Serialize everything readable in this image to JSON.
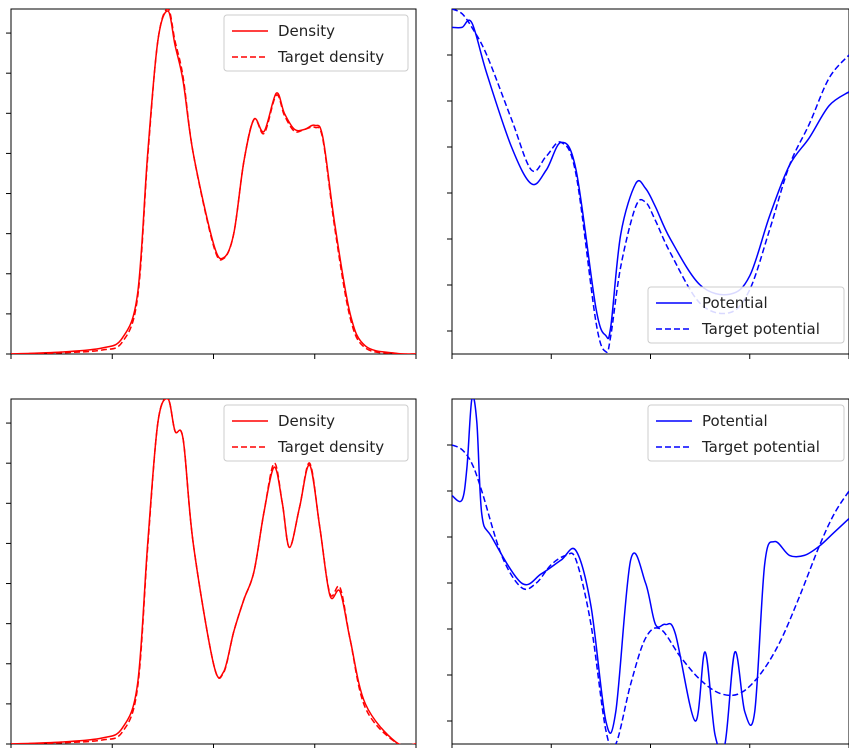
{
  "chart_data": [
    {
      "type": "line",
      "panel": "top-left",
      "xlim": [
        0,
        4
      ],
      "ylim": [
        0,
        8.6
      ],
      "xticks": [
        0,
        1,
        2,
        3,
        4
      ],
      "yticks": [
        0,
        1,
        2,
        3,
        4,
        5,
        6,
        7,
        8
      ],
      "tick_labels_visible": false,
      "legend_position": "top-right",
      "series": [
        {
          "name": "Density",
          "style": "solid",
          "color": "#ff0000",
          "x": [
            0,
            0.5,
            0.9,
            1.1,
            1.25,
            1.35,
            1.45,
            1.55,
            1.62,
            1.7,
            1.8,
            2.0,
            2.1,
            2.2,
            2.3,
            2.4,
            2.5,
            2.62,
            2.7,
            2.8,
            2.9,
            3.0,
            3.08,
            3.2,
            3.35,
            3.5,
            3.8,
            4.0
          ],
          "y": [
            0,
            0.05,
            0.15,
            0.4,
            1.5,
            5.0,
            7.8,
            8.55,
            7.7,
            6.8,
            5.0,
            2.75,
            2.4,
            3.0,
            4.8,
            5.85,
            5.55,
            6.5,
            6.0,
            5.6,
            5.6,
            5.7,
            5.4,
            3.2,
            1.0,
            0.2,
            0.02,
            0
          ]
        },
        {
          "name": "Target density",
          "style": "dashed",
          "color": "#ff0000",
          "x": [
            0,
            0.5,
            0.9,
            1.1,
            1.25,
            1.35,
            1.45,
            1.55,
            1.62,
            1.7,
            1.8,
            2.0,
            2.1,
            2.2,
            2.3,
            2.4,
            2.5,
            2.62,
            2.7,
            2.8,
            2.9,
            3.0,
            3.08,
            3.2,
            3.35,
            3.5,
            3.8,
            4.0
          ],
          "y": [
            0,
            0.03,
            0.1,
            0.3,
            1.4,
            4.9,
            7.8,
            8.6,
            7.8,
            6.9,
            5.0,
            2.7,
            2.38,
            3.0,
            4.8,
            5.85,
            5.5,
            6.45,
            5.95,
            5.55,
            5.6,
            5.65,
            5.35,
            3.1,
            0.9,
            0.15,
            0.01,
            0
          ]
        }
      ]
    },
    {
      "type": "line",
      "panel": "top-right",
      "xlim": [
        0,
        4
      ],
      "ylim": [
        -3.5,
        4
      ],
      "xticks": [
        0,
        1,
        2,
        3,
        4
      ],
      "yticks": [
        -3,
        -2,
        -1,
        0,
        1,
        2,
        3
      ],
      "tick_labels_visible": false,
      "legend_position": "bottom-right",
      "series": [
        {
          "name": "Potential",
          "style": "solid",
          "color": "#0000ff",
          "x": [
            0,
            0.1,
            0.2,
            0.35,
            0.6,
            0.8,
            0.95,
            1.1,
            1.25,
            1.45,
            1.55,
            1.6,
            1.7,
            1.85,
            1.95,
            2.05,
            2.2,
            2.5,
            2.8,
            3.0,
            3.2,
            3.4,
            3.6,
            3.8,
            4.0
          ],
          "y": [
            3.6,
            3.6,
            3.7,
            2.6,
            1.0,
            0.2,
            0.5,
            1.1,
            0.5,
            -2.5,
            -3.1,
            -2.9,
            -0.9,
            0.2,
            0.1,
            -0.3,
            -1.0,
            -2.0,
            -2.2,
            -1.8,
            -0.5,
            0.6,
            1.2,
            1.9,
            2.2
          ]
        },
        {
          "name": "Target potential",
          "style": "dashed",
          "color": "#0000ff",
          "x": [
            0,
            0.1,
            0.2,
            0.35,
            0.6,
            0.8,
            0.95,
            1.1,
            1.25,
            1.45,
            1.55,
            1.6,
            1.7,
            1.85,
            1.95,
            2.05,
            2.2,
            2.5,
            2.8,
            3.0,
            3.2,
            3.4,
            3.6,
            3.8,
            4.0
          ],
          "y": [
            4.0,
            3.9,
            3.6,
            3.0,
            1.6,
            0.5,
            0.8,
            1.1,
            0.4,
            -2.8,
            -3.45,
            -3.1,
            -1.6,
            -0.3,
            -0.2,
            -0.6,
            -1.3,
            -2.4,
            -2.6,
            -2.1,
            -0.8,
            0.6,
            1.5,
            2.5,
            3.0
          ]
        }
      ]
    },
    {
      "type": "line",
      "panel": "bottom-left",
      "xlim": [
        0,
        4
      ],
      "ylim": [
        0,
        8.6
      ],
      "xticks": [
        0,
        1,
        2,
        3,
        4
      ],
      "yticks": [
        0,
        1,
        2,
        3,
        4,
        5,
        6,
        7,
        8
      ],
      "tick_labels_visible": false,
      "legend_position": "top-right",
      "series": [
        {
          "name": "Density",
          "style": "solid",
          "color": "#ff0000",
          "x": [
            0,
            0.5,
            0.9,
            1.1,
            1.25,
            1.35,
            1.45,
            1.55,
            1.62,
            1.7,
            1.8,
            2.0,
            2.1,
            2.2,
            2.3,
            2.4,
            2.5,
            2.6,
            2.68,
            2.75,
            2.85,
            2.95,
            3.05,
            3.15,
            3.25,
            3.35,
            3.5,
            3.8,
            4.0
          ],
          "y": [
            0,
            0.05,
            0.15,
            0.4,
            1.5,
            5.0,
            8.0,
            8.6,
            7.8,
            7.6,
            5.0,
            2.0,
            1.8,
            2.8,
            3.6,
            4.3,
            5.8,
            6.9,
            6.0,
            4.9,
            5.9,
            6.95,
            5.4,
            3.7,
            3.8,
            2.6,
            1.0,
            0.05,
            0
          ]
        },
        {
          "name": "Target density",
          "style": "dashed",
          "color": "#ff0000",
          "x": [
            0,
            0.5,
            0.9,
            1.1,
            1.25,
            1.35,
            1.45,
            1.55,
            1.62,
            1.7,
            1.8,
            2.0,
            2.1,
            2.2,
            2.3,
            2.4,
            2.5,
            2.6,
            2.68,
            2.75,
            2.85,
            2.95,
            3.05,
            3.15,
            3.25,
            3.35,
            3.5,
            3.8,
            4.0
          ],
          "y": [
            0,
            0.03,
            0.1,
            0.3,
            1.4,
            4.9,
            8.0,
            8.6,
            7.8,
            7.6,
            5.0,
            2.0,
            1.78,
            2.8,
            3.6,
            4.3,
            5.8,
            7.0,
            6.0,
            4.9,
            5.9,
            7.0,
            5.4,
            3.75,
            3.9,
            2.6,
            0.9,
            0.04,
            0
          ]
        }
      ]
    },
    {
      "type": "line",
      "panel": "bottom-right",
      "xlim": [
        0,
        4
      ],
      "ylim": [
        -3.5,
        4
      ],
      "xticks": [
        0,
        1,
        2,
        3,
        4
      ],
      "yticks": [
        -3,
        -2,
        -1,
        0,
        1,
        2,
        3
      ],
      "tick_labels_visible": false,
      "legend_position": "top-right",
      "series": [
        {
          "name": "Potential",
          "style": "solid",
          "color": "#0000ff",
          "x": [
            0,
            0.1,
            0.15,
            0.2,
            0.25,
            0.3,
            0.4,
            0.7,
            0.9,
            1.1,
            1.25,
            1.4,
            1.55,
            1.65,
            1.8,
            1.95,
            2.05,
            2.15,
            2.25,
            2.45,
            2.55,
            2.65,
            2.75,
            2.85,
            2.95,
            3.05,
            3.15,
            3.25,
            3.4,
            3.55,
            3.7,
            3.85,
            4.0
          ],
          "y": [
            1.9,
            1.8,
            2.5,
            4.0,
            3.5,
            1.5,
            1.0,
            0.0,
            0.2,
            0.5,
            0.7,
            -0.5,
            -3.0,
            -2.8,
            0.5,
            0.0,
            -0.9,
            -0.9,
            -1.1,
            -3.0,
            -1.5,
            -3.3,
            -3.5,
            -1.5,
            -2.8,
            -2.8,
            0.4,
            0.9,
            0.6,
            0.6,
            0.8,
            1.1,
            1.4
          ]
        },
        {
          "name": "Target potential",
          "style": "dashed",
          "color": "#0000ff",
          "x": [
            0,
            0.1,
            0.2,
            0.3,
            0.5,
            0.7,
            0.85,
            1.0,
            1.15,
            1.25,
            1.4,
            1.55,
            1.65,
            1.8,
            1.95,
            2.1,
            2.3,
            2.5,
            2.7,
            2.9,
            3.1,
            3.3,
            3.5,
            3.7,
            3.85,
            4.0
          ],
          "y": [
            3.0,
            2.9,
            2.6,
            2.0,
            0.6,
            -0.1,
            0.0,
            0.4,
            0.6,
            0.5,
            -0.9,
            -3.2,
            -3.5,
            -2.2,
            -1.2,
            -1.0,
            -1.6,
            -2.1,
            -2.4,
            -2.4,
            -2.0,
            -1.3,
            -0.3,
            0.8,
            1.5,
            2.0
          ]
        }
      ]
    }
  ]
}
